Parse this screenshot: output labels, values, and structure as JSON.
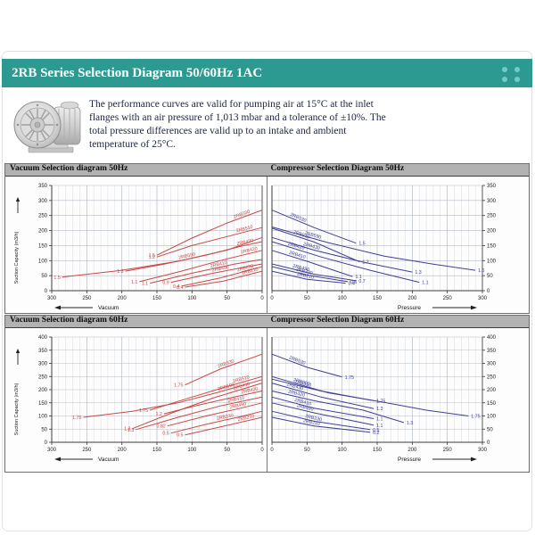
{
  "header": {
    "title": "2RB Series Selection Diagram 50/60Hz 1AC",
    "accent_color": "#2d9a92",
    "dot_color": "#72ccc4"
  },
  "intro": {
    "text": "The performance curves are valid for pumping air at 15°C at the inlet flanges with an air pressure of 1,013 mbar and a tolerance of ±10%. The total pressure differences are valid up to an intake and ambient temperature of 25°C."
  },
  "chart_data": [
    {
      "type": "line",
      "title": "Vacuum Selection diagram 50Hz",
      "xlabel": "Vacuum",
      "ylabel": "Suction Capacity (m3/h)",
      "x_reversed": true,
      "xlim": [
        0,
        300
      ],
      "x_tick_step": 50,
      "ylim": [
        0,
        350
      ],
      "y_tick_step": 50,
      "grid": true,
      "color": "#c84848",
      "series": [
        {
          "name": "2RB530",
          "power_kw": "1.5",
          "lf": 0.82,
          "points": [
            [
              150,
              118
            ],
            [
              100,
              175
            ],
            [
              50,
              225
            ],
            [
              0,
              268
            ]
          ]
        },
        {
          "name": "2RB510",
          "power_kw": "1.2",
          "lf": 0.84,
          "points": [
            [
              150,
              112
            ],
            [
              100,
              150
            ],
            [
              50,
              180
            ],
            [
              0,
              210
            ]
          ]
        },
        {
          "name": "2RB590",
          "power_kw": "1.5",
          "lf": 0.62,
          "points": [
            [
              285,
              45
            ],
            [
              200,
              68
            ],
            [
              120,
              98
            ],
            [
              50,
              135
            ],
            [
              0,
              177
            ]
          ]
        },
        {
          "name": "2RB430",
          "power_kw": "1.3",
          "lf": 0.88,
          "points": [
            [
              195,
              65
            ],
            [
              140,
              88
            ],
            [
              80,
              118
            ],
            [
              30,
              148
            ],
            [
              0,
              163
            ]
          ]
        },
        {
          "name": "2RB420",
          "power_kw": "1.1",
          "lf": 0.9,
          "points": [
            [
              175,
              30
            ],
            [
              120,
              62
            ],
            [
              60,
              100
            ],
            [
              0,
              134
            ]
          ]
        },
        {
          "name": "2RB410",
          "power_kw": "1.1",
          "lf": 0.62,
          "points": [
            [
              160,
              25
            ],
            [
              100,
              58
            ],
            [
              40,
              88
            ],
            [
              0,
              104
            ]
          ]
        },
        {
          "name": "2RB490",
          "power_kw": "0.9",
          "lf": 0.55,
          "points": [
            [
              130,
              28
            ],
            [
              70,
              58
            ],
            [
              0,
              89
            ]
          ]
        },
        {
          "name": "2RB230",
          "power_kw": "0.4",
          "lf": 0.8,
          "points": [
            [
              115,
              15
            ],
            [
              60,
              42
            ],
            [
              0,
              80
            ]
          ]
        },
        {
          "name": "2RB210",
          "power_kw": "0.4",
          "lf": 0.85,
          "points": [
            [
              110,
              12
            ],
            [
              55,
              32
            ],
            [
              0,
              65
            ]
          ]
        }
      ]
    },
    {
      "type": "line",
      "title": "Compressor Selection Diagram 50Hz",
      "xlabel": "Pressure",
      "ylabel": "",
      "x_reversed": false,
      "xlim": [
        0,
        300
      ],
      "x_tick_step": 50,
      "ylim": [
        0,
        350
      ],
      "y_tick_step": 50,
      "grid": true,
      "color": "#3f3f94",
      "series": [
        {
          "name": "2RB530",
          "power_kw": "1.5",
          "lf": 0.3,
          "points": [
            [
              0,
              268
            ],
            [
              60,
              210
            ],
            [
              120,
              158
            ]
          ]
        },
        {
          "name": "2RB510",
          "power_kw": "1.2",
          "lf": 0.32,
          "points": [
            [
              0,
              208
            ],
            [
              60,
              162
            ],
            [
              125,
              96
            ]
          ]
        },
        {
          "name": "2RB590",
          "power_kw": "1.6",
          "lf": 0.2,
          "points": [
            [
              0,
              212
            ],
            [
              80,
              160
            ],
            [
              160,
              115
            ],
            [
              230,
              88
            ],
            [
              290,
              68
            ]
          ]
        },
        {
          "name": "2RB430",
          "power_kw": "1.3",
          "lf": 0.28,
          "points": [
            [
              0,
              177
            ],
            [
              60,
              135
            ],
            [
              130,
              95
            ],
            [
              200,
              62
            ]
          ]
        },
        {
          "name": "2RB420",
          "power_kw": "1.1",
          "lf": 0.16,
          "points": [
            [
              0,
              163
            ],
            [
              70,
              112
            ],
            [
              140,
              68
            ],
            [
              210,
              28
            ]
          ]
        },
        {
          "name": "2RB410",
          "power_kw": "1.1",
          "lf": 0.3,
          "points": [
            [
              0,
              134
            ],
            [
              50,
              98
            ],
            [
              115,
              47
            ]
          ]
        },
        {
          "name": "2RB490",
          "power_kw": "0.7",
          "lf": 0.34,
          "points": [
            [
              0,
              89
            ],
            [
              60,
              55
            ],
            [
              120,
              33
            ]
          ]
        },
        {
          "name": "2RB230",
          "power_kw": "0.6",
          "lf": 0.42,
          "points": [
            [
              0,
              80
            ],
            [
              50,
              52
            ],
            [
              108,
              30
            ]
          ]
        },
        {
          "name": "2RB210",
          "power_kw": "0.4",
          "lf": 0.45,
          "points": [
            [
              0,
              65
            ],
            [
              50,
              38
            ],
            [
              105,
              25
            ]
          ]
        }
      ]
    },
    {
      "type": "line",
      "title": "Vacuum Selection diagram 60Hz",
      "xlabel": "Vacuum",
      "ylabel": "Suction Capacity (m3/h)",
      "x_reversed": true,
      "xlim": [
        0,
        300
      ],
      "x_tick_step": 50,
      "ylim": [
        0,
        400
      ],
      "y_tick_step": 50,
      "grid": true,
      "color": "#c84848",
      "series": [
        {
          "name": "2RB530",
          "power_kw": "1.75",
          "lf": 0.55,
          "points": [
            [
              110,
              218
            ],
            [
              60,
              278
            ],
            [
              0,
              335
            ]
          ]
        },
        {
          "name": "2RB510",
          "power_kw": "1.75",
          "lf": 0.82,
          "points": [
            [
              160,
              122
            ],
            [
              100,
              172
            ],
            [
              50,
              212
            ],
            [
              0,
              250
            ]
          ]
        },
        {
          "name": "2RB590",
          "power_kw": "1.75",
          "lf": 0.8,
          "points": [
            [
              255,
              95
            ],
            [
              185,
              118
            ],
            [
              120,
              150
            ],
            [
              60,
              192
            ],
            [
              0,
              238
            ]
          ]
        },
        {
          "name": "2RB430",
          "power_kw": "1.3",
          "lf": 0.85,
          "points": [
            [
              185,
              52
            ],
            [
              130,
              110
            ],
            [
              70,
              168
            ],
            [
              0,
              225
            ]
          ]
        },
        {
          "name": "2RB420",
          "power_kw": "1.2",
          "lf": 0.88,
          "points": [
            [
              140,
              108
            ],
            [
              90,
              142
            ],
            [
              40,
              172
            ],
            [
              0,
              195
            ]
          ]
        },
        {
          "name": "2RB410",
          "power_kw": "1.3",
          "lf": 0.8,
          "points": [
            [
              180,
              48
            ],
            [
              120,
              95
            ],
            [
              60,
              138
            ],
            [
              0,
              172
            ]
          ]
        },
        {
          "name": "2RB490",
          "power_kw": "0.82",
          "lf": 0.75,
          "points": [
            [
              135,
              62
            ],
            [
              80,
              100
            ],
            [
              30,
              130
            ],
            [
              0,
              150
            ]
          ]
        },
        {
          "name": "2RB230",
          "power_kw": "0.5",
          "lf": 0.6,
          "points": [
            [
              130,
              35
            ],
            [
              80,
              68
            ],
            [
              30,
              98
            ],
            [
              0,
              118
            ]
          ]
        },
        {
          "name": "2RB210",
          "power_kw": "0.5",
          "lf": 0.8,
          "points": [
            [
              110,
              28
            ],
            [
              60,
              58
            ],
            [
              0,
              95
            ]
          ]
        }
      ]
    },
    {
      "type": "line",
      "title": "Compressor Selection Diagram 60Hz",
      "xlabel": "Pressure",
      "ylabel": "",
      "x_reversed": false,
      "xlim": [
        0,
        300
      ],
      "x_tick_step": 50,
      "ylim": [
        0,
        400
      ],
      "y_tick_step": 50,
      "grid": true,
      "color": "#3f3f94",
      "series": [
        {
          "name": "2RB530",
          "power_kw": "1.75",
          "lf": 0.35,
          "points": [
            [
              0,
              335
            ],
            [
              50,
              285
            ],
            [
              100,
              248
            ]
          ]
        },
        {
          "name": "2RB510",
          "power_kw": "1.75",
          "lf": 0.3,
          "points": [
            [
              0,
              240
            ],
            [
              70,
              195
            ],
            [
              145,
              158
            ]
          ]
        },
        {
          "name": "2RB590",
          "power_kw": "1.75",
          "lf": 0.15,
          "points": [
            [
              0,
              250
            ],
            [
              80,
              188
            ],
            [
              160,
              152
            ],
            [
              220,
              122
            ],
            [
              280,
              100
            ]
          ]
        },
        {
          "name": "2RB430",
          "power_kw": "1.3",
          "lf": 0.22,
          "points": [
            [
              0,
              225
            ],
            [
              70,
              172
            ],
            [
              145,
              128
            ]
          ]
        },
        {
          "name": "2RB420",
          "power_kw": "1.3",
          "lf": 0.18,
          "points": [
            [
              0,
              195
            ],
            [
              60,
              158
            ],
            [
              130,
              122
            ],
            [
              188,
              75
            ]
          ]
        },
        {
          "name": "2RB410",
          "power_kw": "1.1",
          "lf": 0.3,
          "points": [
            [
              0,
              172
            ],
            [
              60,
              130
            ],
            [
              145,
              90
            ]
          ]
        },
        {
          "name": "2RB490",
          "power_kw": "1.1",
          "lf": 0.32,
          "points": [
            [
              0,
              150
            ],
            [
              60,
              112
            ],
            [
              145,
              65
            ]
          ]
        },
        {
          "name": "2RB230",
          "power_kw": "0.5",
          "lf": 0.42,
          "points": [
            [
              0,
              118
            ],
            [
              60,
              80
            ],
            [
              140,
              48
            ]
          ]
        },
        {
          "name": "2RB210",
          "power_kw": "0.2",
          "lf": 0.4,
          "points": [
            [
              0,
              95
            ],
            [
              60,
              62
            ],
            [
              140,
              38
            ]
          ]
        }
      ]
    }
  ]
}
